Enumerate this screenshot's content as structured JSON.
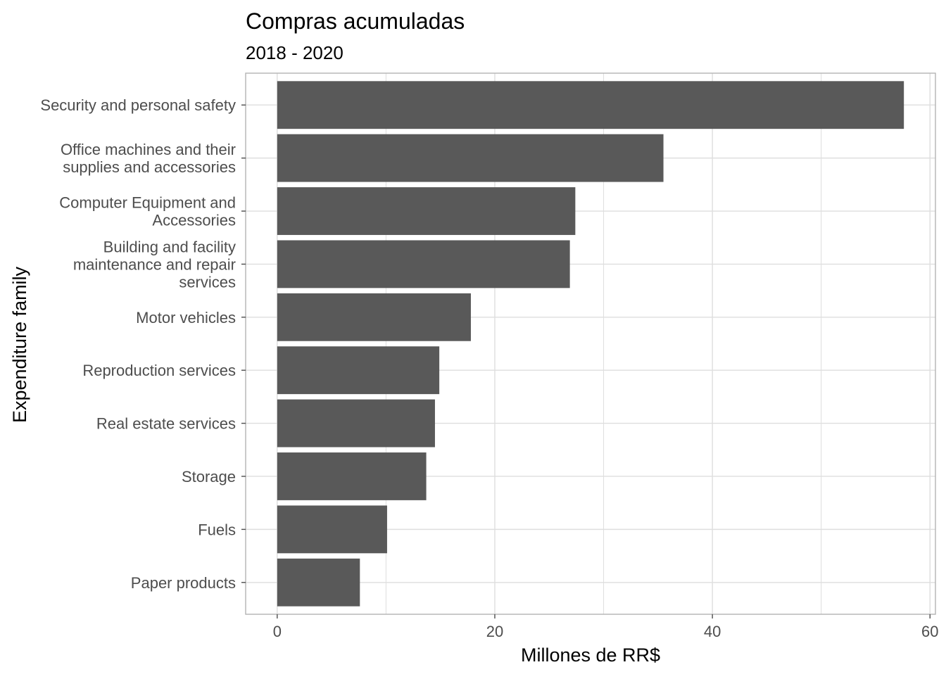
{
  "chart_data": {
    "type": "bar",
    "orientation": "horizontal",
    "title": "Compras acumuladas",
    "subtitle": "2018 - 2020",
    "xlabel": "Millones de RR$",
    "ylabel": "Expenditure family",
    "categories": [
      "Security and personal safety",
      "Office machines and their supplies and accessories",
      "Computer Equipment and Accessories",
      "Building and facility maintenance and repair services",
      "Motor vehicles",
      "Reproduction services",
      "Real estate services",
      "Storage",
      "Fuels",
      "Paper products"
    ],
    "category_lines": [
      [
        "Security and personal safety"
      ],
      [
        "Office machines and their",
        "supplies and accessories"
      ],
      [
        "Computer Equipment and",
        "Accessories"
      ],
      [
        "Building and facility",
        "maintenance and repair",
        "services"
      ],
      [
        "Motor vehicles"
      ],
      [
        "Reproduction services"
      ],
      [
        "Real estate services"
      ],
      [
        "Storage"
      ],
      [
        "Fuels"
      ],
      [
        "Paper products"
      ]
    ],
    "values": [
      57.6,
      35.5,
      27.4,
      26.9,
      17.8,
      14.9,
      14.5,
      13.7,
      10.1,
      7.6
    ],
    "xlim": [
      -2.9,
      60.5
    ],
    "xticks": [
      0,
      20,
      40,
      60
    ],
    "tick_labels": [
      "0",
      "20",
      "40",
      "60"
    ],
    "grid": true,
    "bar_color": "#595959",
    "grid_color": "#dedede",
    "panel_border_color": "#b3b3b3"
  }
}
